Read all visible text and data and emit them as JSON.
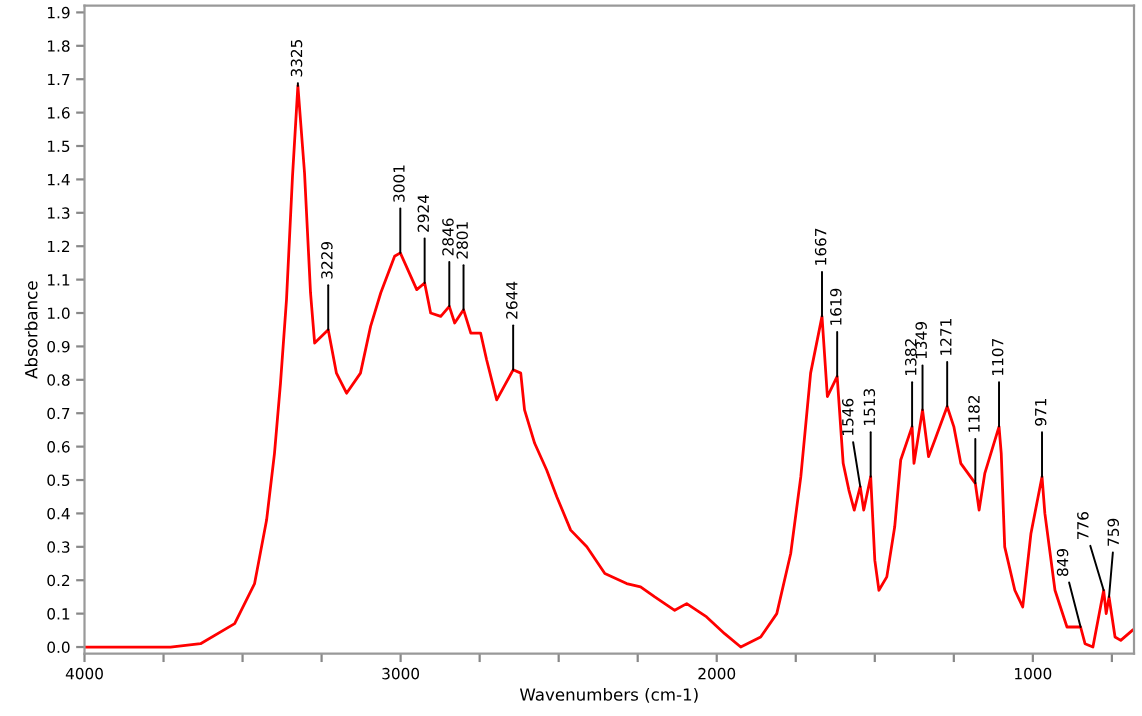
{
  "chart_data": {
    "type": "line",
    "xlabel": "Wavenumbers (cm-1)",
    "ylabel": "Absorbance",
    "xlim": [
      4000,
      680
    ],
    "ylim": [
      -0.02,
      1.92
    ],
    "xticks": [
      4000,
      {
        "value": 3750,
        "label": null
      },
      {
        "value": 3500,
        "label": null
      },
      {
        "value": 3250,
        "label": null
      },
      3000,
      {
        "value": 2750,
        "label": null
      },
      {
        "value": 2500,
        "label": null
      },
      {
        "value": 2250,
        "label": null
      },
      2000,
      {
        "value": 1750,
        "label": null
      },
      {
        "value": 1500,
        "label": null
      },
      {
        "value": 1250,
        "label": null
      },
      1000,
      {
        "value": 750,
        "label": null
      }
    ],
    "yticks": [
      {
        "value": 0,
        "label": "0.0"
      },
      0.1,
      0.2,
      0.3,
      0.4,
      0.5,
      0.6,
      0.7,
      0.8,
      0.9,
      {
        "value": 1,
        "label": "1.0"
      },
      1.1,
      1.2,
      1.3,
      1.4,
      1.5,
      1.6,
      1.7,
      1.8,
      1.9
    ],
    "grid": false,
    "legend": false,
    "series": [
      {
        "color": "#ff0000",
        "x": [
          4000,
          3900,
          3800,
          3728,
          3633,
          3525,
          3462,
          3424,
          3399,
          3380,
          3361,
          3342,
          3325,
          3304,
          3285,
          3272,
          3229,
          3203,
          3171,
          3127,
          3095,
          3063,
          3019,
          3001,
          2949,
          2924,
          2905,
          2873,
          2846,
          2829,
          2801,
          2778,
          2747,
          2728,
          2696,
          2644,
          2620,
          2608,
          2576,
          2538,
          2506,
          2462,
          2411,
          2354,
          2285,
          2241,
          2196,
          2133,
          2095,
          2032,
          1975,
          1924,
          1861,
          1810,
          1766,
          1734,
          1703,
          1667,
          1650,
          1619,
          1600,
          1582,
          1565,
          1546,
          1535,
          1513,
          1500,
          1487,
          1462,
          1437,
          1418,
          1382,
          1376,
          1349,
          1330,
          1310,
          1271,
          1250,
          1228,
          1182,
          1170,
          1152,
          1107,
          1100,
          1089,
          1057,
          1032,
          1006,
          971,
          962,
          930,
          892,
          849,
          835,
          810,
          776,
          768,
          759,
          740,
          722,
          685
        ],
        "values": [
          0.0,
          0.0,
          0.0,
          0.0,
          0.01,
          0.07,
          0.19,
          0.38,
          0.58,
          0.79,
          1.04,
          1.41,
          1.68,
          1.42,
          1.06,
          0.91,
          0.95,
          0.82,
          0.76,
          0.82,
          0.96,
          1.06,
          1.17,
          1.18,
          1.07,
          1.09,
          1.0,
          0.99,
          1.02,
          0.97,
          1.01,
          0.94,
          0.94,
          0.86,
          0.74,
          0.83,
          0.82,
          0.71,
          0.61,
          0.53,
          0.45,
          0.35,
          0.3,
          0.22,
          0.19,
          0.18,
          0.15,
          0.11,
          0.13,
          0.09,
          0.04,
          0.0,
          0.03,
          0.1,
          0.28,
          0.51,
          0.82,
          0.99,
          0.75,
          0.81,
          0.55,
          0.47,
          0.41,
          0.48,
          0.41,
          0.51,
          0.26,
          0.17,
          0.21,
          0.36,
          0.56,
          0.66,
          0.55,
          0.71,
          0.57,
          0.62,
          0.72,
          0.66,
          0.55,
          0.49,
          0.41,
          0.52,
          0.66,
          0.58,
          0.3,
          0.17,
          0.12,
          0.34,
          0.51,
          0.4,
          0.17,
          0.06,
          0.06,
          0.01,
          0.0,
          0.17,
          0.1,
          0.15,
          0.03,
          0.02,
          0.05
        ]
      }
    ],
    "annotations": [
      {
        "text": "3325",
        "x": 3325,
        "y": 1.68
      },
      {
        "text": "3229",
        "x": 3229,
        "y": 0.95
      },
      {
        "text": "3001",
        "x": 3001,
        "y": 1.18
      },
      {
        "text": "2924",
        "x": 2924,
        "y": 1.09
      },
      {
        "text": "2846",
        "x": 2846,
        "y": 1.02
      },
      {
        "text": "2801",
        "x": 2801,
        "y": 1.01
      },
      {
        "text": "2644",
        "x": 2644,
        "y": 0.83
      },
      {
        "text": "1667",
        "x": 1667,
        "y": 0.99
      },
      {
        "text": "1619",
        "x": 1619,
        "y": 0.81
      },
      {
        "text": "1546",
        "x": 1546,
        "y": 0.48
      },
      {
        "text": "1513",
        "x": 1513,
        "y": 0.51
      },
      {
        "text": "1382",
        "x": 1382,
        "y": 0.66
      },
      {
        "text": "1349",
        "x": 1349,
        "y": 0.71
      },
      {
        "text": "1271",
        "x": 1271,
        "y": 0.72
      },
      {
        "text": "1182",
        "x": 1182,
        "y": 0.49
      },
      {
        "text": "1107",
        "x": 1107,
        "y": 0.66
      },
      {
        "text": "971",
        "x": 971,
        "y": 0.51
      },
      {
        "text": "849",
        "x": 849,
        "y": 0.06
      },
      {
        "text": "776",
        "x": 776,
        "y": 0.17
      },
      {
        "text": "759",
        "x": 759,
        "y": 0.15
      }
    ]
  }
}
